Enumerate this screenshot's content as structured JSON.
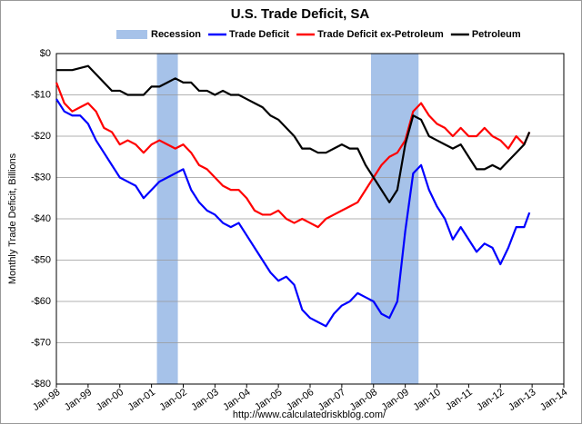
{
  "chart_data": {
    "type": "line",
    "title": "U.S. Trade Deficit, SA",
    "y_label": "Monthly Trade Deficit, Billions",
    "source": "http://www.calculatedriskblog.com/",
    "xlim": [
      1998,
      2014
    ],
    "xticks": [
      {
        "value": 1998,
        "label": "Jan-98"
      },
      {
        "value": 1999,
        "label": "Jan-99"
      },
      {
        "value": 2000,
        "label": "Jan-00"
      },
      {
        "value": 2001,
        "label": "Jan-01"
      },
      {
        "value": 2002,
        "label": "Jan-02"
      },
      {
        "value": 2003,
        "label": "Jan-03"
      },
      {
        "value": 2004,
        "label": "Jan-04"
      },
      {
        "value": 2005,
        "label": "Jan-05"
      },
      {
        "value": 2006,
        "label": "Jan-06"
      },
      {
        "value": 2007,
        "label": "Jan-07"
      },
      {
        "value": 2008,
        "label": "Jan-08"
      },
      {
        "value": 2009,
        "label": "Jan-09"
      },
      {
        "value": 2010,
        "label": "Jan-10"
      },
      {
        "value": 2011,
        "label": "Jan-11"
      },
      {
        "value": 2012,
        "label": "Jan-12"
      },
      {
        "value": 2013,
        "label": "Jan-13"
      },
      {
        "value": 2014,
        "label": "Jan-14"
      }
    ],
    "ylim": [
      -80,
      0
    ],
    "yticks": [
      {
        "value": 0,
        "label": "$0"
      },
      {
        "value": -10,
        "label": "-$10"
      },
      {
        "value": -20,
        "label": "-$20"
      },
      {
        "value": -30,
        "label": "-$30"
      },
      {
        "value": -40,
        "label": "-$40"
      },
      {
        "value": -50,
        "label": "-$50"
      },
      {
        "value": -60,
        "label": "-$60"
      },
      {
        "value": -70,
        "label": "-$70"
      },
      {
        "value": -80,
        "label": "-$80"
      }
    ],
    "grid": true,
    "recessions": {
      "name": "Recession",
      "color": "#a6c2e9",
      "periods": [
        [
          2001.17,
          2001.83
        ],
        [
          2007.92,
          2009.42
        ]
      ]
    },
    "x": [
      1998,
      1998.25,
      1998.5,
      1998.75,
      1999,
      1999.25,
      1999.5,
      1999.75,
      2000,
      2000.25,
      2000.5,
      2000.75,
      2001,
      2001.25,
      2001.5,
      2001.75,
      2002,
      2002.25,
      2002.5,
      2002.75,
      2003,
      2003.25,
      2003.5,
      2003.75,
      2004,
      2004.25,
      2004.5,
      2004.75,
      2005,
      2005.25,
      2005.5,
      2005.75,
      2006,
      2006.25,
      2006.5,
      2006.75,
      2007,
      2007.25,
      2007.5,
      2007.75,
      2008,
      2008.25,
      2008.5,
      2008.75,
      2009,
      2009.25,
      2009.5,
      2009.75,
      2010,
      2010.25,
      2010.5,
      2010.75,
      2011,
      2011.25,
      2011.5,
      2011.75,
      2012,
      2012.25,
      2012.5,
      2012.75,
      2012.917
    ],
    "series": [
      {
        "name": "Trade Deficit",
        "color": "#0000ff",
        "values": [
          -11,
          -14,
          -15,
          -15,
          -17,
          -21,
          -24,
          -27,
          -30,
          -31,
          -32,
          -35,
          -33,
          -31,
          -30,
          -29,
          -28,
          -33,
          -36,
          -38,
          -39,
          -41,
          -42,
          -41,
          -44,
          -47,
          -50,
          -53,
          -55,
          -54,
          -56,
          -62,
          -64,
          -65,
          -66,
          -63,
          -61,
          -60,
          -58,
          -59,
          -60,
          -63,
          -64,
          -60,
          -43,
          -29,
          -27,
          -33,
          -37,
          -40,
          -45,
          -42,
          -45,
          -48,
          -46,
          -47,
          -51,
          -47,
          -42,
          -42,
          -38.5
        ]
      },
      {
        "name": "Trade Deficit ex-Petroleum",
        "color": "#ff0000",
        "values": [
          -7,
          -12,
          -14,
          -13,
          -12,
          -14,
          -18,
          -19,
          -22,
          -21,
          -22,
          -24,
          -22,
          -21,
          -22,
          -23,
          -22,
          -24,
          -27,
          -28,
          -30,
          -32,
          -33,
          -33,
          -35,
          -38,
          -39,
          -39,
          -38,
          -40,
          -41,
          -40,
          -41,
          -42,
          -40,
          -39,
          -38,
          -37,
          -36,
          -33,
          -30,
          -27,
          -25,
          -24,
          -21,
          -14,
          -12,
          -15,
          -17,
          -18,
          -20,
          -18,
          -20,
          -20,
          -18,
          -20,
          -21,
          -23,
          -20,
          -22,
          -19
        ]
      },
      {
        "name": "Petroleum",
        "color": "#000000",
        "values": [
          -4,
          -4,
          -4,
          -3.5,
          -3,
          -5,
          -7,
          -9,
          -9,
          -10,
          -10,
          -10,
          -8,
          -8,
          -7,
          -6,
          -7,
          -7,
          -9,
          -9,
          -10,
          -9,
          -10,
          -10,
          -11,
          -12,
          -13,
          -15,
          -16,
          -18,
          -20,
          -23,
          -23,
          -24,
          -24,
          -23,
          -22,
          -23,
          -23,
          -27,
          -30,
          -33,
          -36,
          -33,
          -22,
          -15,
          -16,
          -20,
          -21,
          -22,
          -23,
          -22,
          -25,
          -28,
          -28,
          -27,
          -28,
          -26,
          -24,
          -22,
          -19
        ]
      }
    ]
  }
}
